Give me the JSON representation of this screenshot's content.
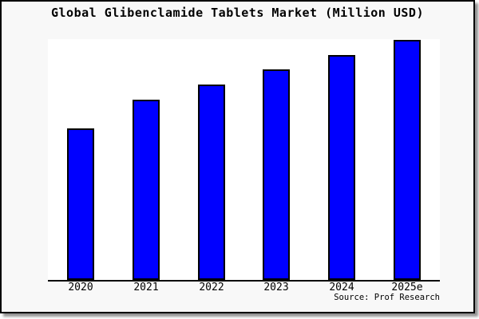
{
  "figure": {
    "title": "Global Glibenclamide Tablets Market (Million USD)",
    "source": "Source: Prof Research"
  },
  "chart_data": {
    "type": "bar",
    "title": "Global Glibenclamide Tablets Market (Million USD)",
    "categories": [
      "2020",
      "2021",
      "2022",
      "2023",
      "2024",
      "2025e"
    ],
    "values": [
      62.8,
      74.8,
      81.1,
      87.4,
      93.4,
      99.7
    ],
    "values_unit": "relative bar height, percent of plot-area height (no y-axis tick labels shown in image)",
    "xlabel": "",
    "ylabel": "",
    "ylim": [
      0,
      100
    ],
    "grid": false,
    "legend": false,
    "annotations": [
      "Source: Prof Research"
    ],
    "bar_fill_color": "#0000FF",
    "bar_border_color": "#000000",
    "plot_bg_color": "#FFFFFF",
    "figure_bg_color": "#F8F8F8",
    "axis_line_color": "#000000"
  }
}
